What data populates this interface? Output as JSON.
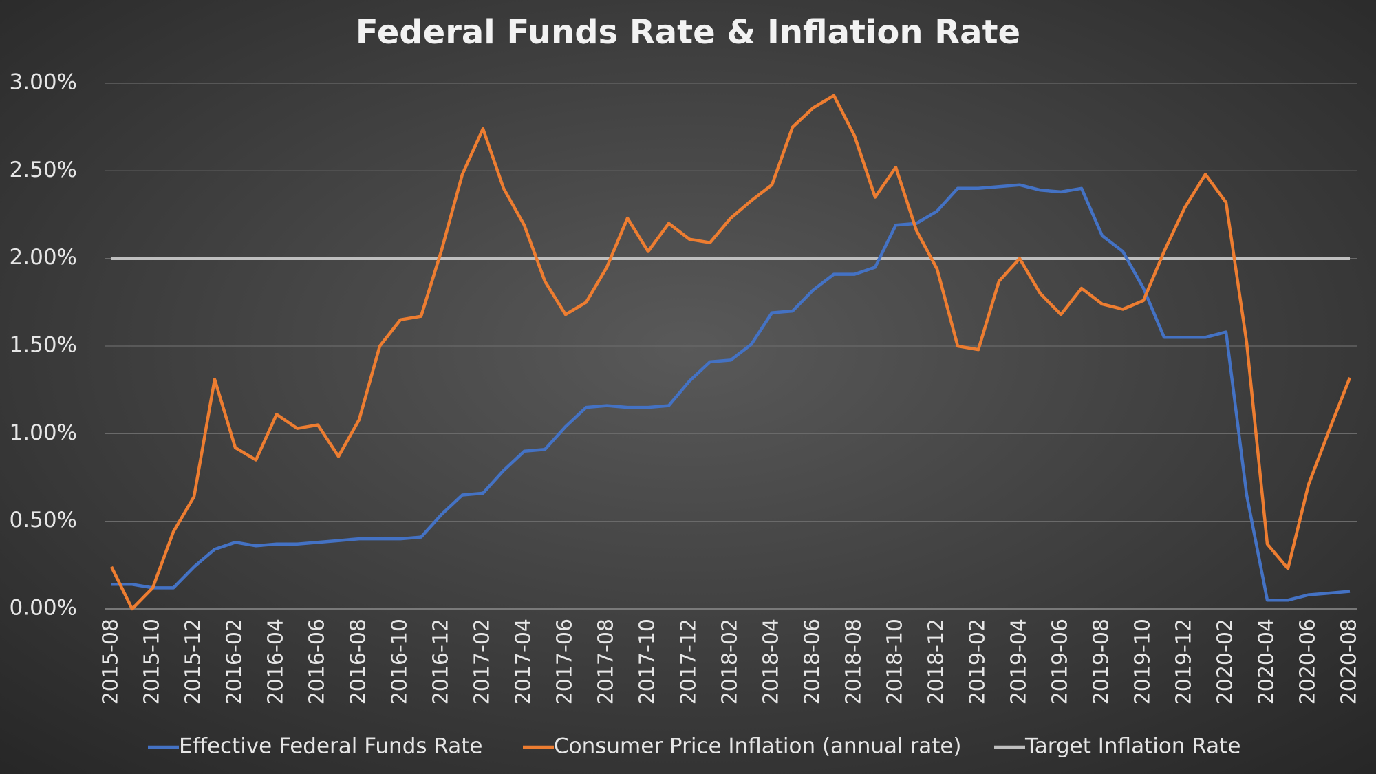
{
  "chart_data": {
    "type": "line",
    "title": "Federal Funds Rate & Inflation Rate",
    "categories": [
      "2015-08",
      null,
      "2015-10",
      null,
      "2015-12",
      null,
      "2016-02",
      null,
      "2016-04",
      null,
      "2016-06",
      null,
      "2016-08",
      null,
      "2016-10",
      null,
      "2016-12",
      null,
      "2017-02",
      null,
      "2017-04",
      null,
      "2017-06",
      null,
      "2017-08",
      null,
      "2017-10",
      null,
      "2017-12",
      null,
      "2018-02",
      null,
      "2018-04",
      null,
      "2018-06",
      null,
      "2018-08",
      null,
      "2018-10",
      null,
      "2018-12",
      null,
      "2019-02",
      null,
      "2019-04",
      null,
      "2019-06",
      null,
      "2019-08",
      null,
      "2019-10",
      null,
      "2019-12",
      null,
      "2020-02",
      null,
      "2020-04",
      null,
      "2020-06",
      null,
      "2020-08"
    ],
    "series": [
      {
        "name": "Effective Federal Funds Rate",
        "color": "#4472c4",
        "values": [
          0.14,
          0.14,
          0.12,
          0.12,
          0.24,
          0.34,
          0.38,
          0.36,
          0.37,
          0.37,
          0.38,
          0.39,
          0.4,
          0.4,
          0.4,
          0.41,
          0.54,
          0.65,
          0.66,
          0.79,
          0.9,
          0.91,
          1.04,
          1.15,
          1.16,
          1.15,
          1.15,
          1.16,
          1.3,
          1.41,
          1.42,
          1.51,
          1.69,
          1.7,
          1.82,
          1.91,
          1.91,
          1.95,
          2.19,
          2.2,
          2.27,
          2.4,
          2.4,
          2.41,
          2.42,
          2.39,
          2.38,
          2.4,
          2.13,
          2.04,
          1.83,
          1.55,
          1.55,
          1.55,
          1.58,
          0.65,
          0.05,
          0.05,
          0.08,
          0.09,
          0.1
        ]
      },
      {
        "name": "Consumer Price Inflation (annual rate)",
        "color": "#ed7d31",
        "values": [
          0.24,
          0.0,
          0.12,
          0.44,
          0.64,
          1.31,
          0.92,
          0.85,
          1.11,
          1.03,
          1.05,
          0.87,
          1.08,
          1.5,
          1.65,
          1.67,
          2.05,
          2.48,
          2.74,
          2.4,
          2.19,
          1.87,
          1.68,
          1.75,
          1.95,
          2.23,
          2.04,
          2.2,
          2.11,
          2.09,
          2.23,
          2.33,
          2.42,
          2.75,
          2.86,
          2.93,
          2.7,
          2.35,
          2.52,
          2.16,
          1.94,
          1.5,
          1.48,
          1.87,
          2.0,
          1.8,
          1.68,
          1.83,
          1.74,
          1.71,
          1.76,
          2.04,
          2.29,
          2.48,
          2.32,
          1.52,
          0.37,
          0.23,
          0.71,
          1.02,
          1.32
        ]
      },
      {
        "name": "Target Inflation Rate",
        "color": "#bfbfbf",
        "values": [
          2,
          2,
          2,
          2,
          2,
          2,
          2,
          2,
          2,
          2,
          2,
          2,
          2,
          2,
          2,
          2,
          2,
          2,
          2,
          2,
          2,
          2,
          2,
          2,
          2,
          2,
          2,
          2,
          2,
          2,
          2,
          2,
          2,
          2,
          2,
          2,
          2,
          2,
          2,
          2,
          2,
          2,
          2,
          2,
          2,
          2,
          2,
          2,
          2,
          2,
          2,
          2,
          2,
          2,
          2,
          2,
          2,
          2,
          2,
          2,
          2
        ]
      }
    ],
    "ylim": [
      0,
      3
    ],
    "yticks": [
      {
        "value": 0,
        "label": "0.00%"
      },
      {
        "value": 0.5,
        "label": "0.50%"
      },
      {
        "value": 1,
        "label": "1.00%"
      },
      {
        "value": 1.5,
        "label": "1.50%"
      },
      {
        "value": 2,
        "label": "2.00%"
      },
      {
        "value": 2.5,
        "label": "2.50%"
      },
      {
        "value": 3,
        "label": "3.00%"
      }
    ],
    "grid": true,
    "legend": "bottom"
  }
}
